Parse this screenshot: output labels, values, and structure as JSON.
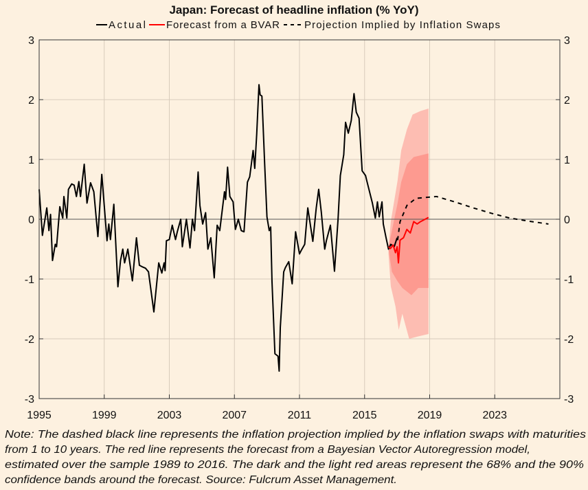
{
  "colors": {
    "background": "#fdf1e0",
    "actual": "#000000",
    "forecast": "#ff0000",
    "band68": "#fd9a90",
    "band90": "#fdbdb2",
    "grid": "#d8cbbb"
  },
  "chart_data": {
    "type": "line",
    "title": "Japan: Forecast of headline inflation (% YoY)",
    "xlim": [
      1995,
      2027
    ],
    "ylim": [
      -3,
      3
    ],
    "xticks": [
      1995,
      1999,
      2003,
      2007,
      2011,
      2015,
      2019,
      2023
    ],
    "yticks": [
      -3,
      -2,
      -1,
      0,
      1,
      2,
      3
    ],
    "grid": true,
    "legend_placement": "top",
    "legend": [
      "Actual",
      "Forecast from a BVAR",
      "Projection Implied by Inflation Swaps"
    ],
    "series": [
      {
        "name": "Actual",
        "style": "solid",
        "color": "#000000",
        "points": [
          [
            1995.0,
            0.5
          ],
          [
            1995.2,
            -0.27
          ],
          [
            1995.47,
            0.19
          ],
          [
            1995.6,
            -0.19
          ],
          [
            1995.7,
            0.08
          ],
          [
            1995.82,
            -0.69
          ],
          [
            1995.99,
            -0.42
          ],
          [
            1996.07,
            -0.46
          ],
          [
            1996.27,
            0.21
          ],
          [
            1996.45,
            0.02
          ],
          [
            1996.52,
            0.38
          ],
          [
            1996.7,
            0.02
          ],
          [
            1996.8,
            0.5
          ],
          [
            1997.0,
            0.59
          ],
          [
            1997.15,
            0.57
          ],
          [
            1997.29,
            0.38
          ],
          [
            1997.44,
            0.63
          ],
          [
            1997.54,
            0.38
          ],
          [
            1997.77,
            0.92
          ],
          [
            1997.94,
            0.27
          ],
          [
            1998.16,
            0.61
          ],
          [
            1998.36,
            0.46
          ],
          [
            1998.61,
            -0.29
          ],
          [
            1998.85,
            0.75
          ],
          [
            1999.17,
            -0.36
          ],
          [
            1999.28,
            -0.08
          ],
          [
            1999.38,
            -0.34
          ],
          [
            1999.59,
            0.25
          ],
          [
            1999.84,
            -1.13
          ],
          [
            2000.0,
            -0.69
          ],
          [
            2000.14,
            -0.5
          ],
          [
            2000.25,
            -0.73
          ],
          [
            2000.45,
            -0.5
          ],
          [
            2000.73,
            -1.03
          ],
          [
            2000.98,
            -0.31
          ],
          [
            2001.16,
            -0.77
          ],
          [
            2001.37,
            -0.8
          ],
          [
            2001.54,
            -0.82
          ],
          [
            2001.72,
            -0.88
          ],
          [
            2002.05,
            -1.55
          ],
          [
            2002.35,
            -0.73
          ],
          [
            2002.54,
            -0.9
          ],
          [
            2002.68,
            -0.73
          ],
          [
            2002.74,
            -0.86
          ],
          [
            2002.82,
            -0.36
          ],
          [
            2003.0,
            -0.34
          ],
          [
            2003.18,
            -0.1
          ],
          [
            2003.38,
            -0.34
          ],
          [
            2003.49,
            -0.21
          ],
          [
            2003.7,
            0.0
          ],
          [
            2003.8,
            -0.46
          ],
          [
            2004.05,
            0.0
          ],
          [
            2004.27,
            -0.48
          ],
          [
            2004.42,
            0.0
          ],
          [
            2004.55,
            -0.19
          ],
          [
            2004.77,
            0.79
          ],
          [
            2004.88,
            0.23
          ],
          [
            2005.05,
            -0.08
          ],
          [
            2005.23,
            0.11
          ],
          [
            2005.37,
            -0.5
          ],
          [
            2005.55,
            -0.31
          ],
          [
            2005.76,
            -0.98
          ],
          [
            2005.94,
            -0.1
          ],
          [
            2006.1,
            -0.19
          ],
          [
            2006.39,
            0.46
          ],
          [
            2006.46,
            0.33
          ],
          [
            2006.58,
            0.87
          ],
          [
            2006.72,
            0.38
          ],
          [
            2006.92,
            0.29
          ],
          [
            2007.06,
            -0.17
          ],
          [
            2007.24,
            0.0
          ],
          [
            2007.42,
            -0.19
          ],
          [
            2007.59,
            -0.21
          ],
          [
            2007.8,
            0.62
          ],
          [
            2007.94,
            0.71
          ],
          [
            2008.15,
            1.15
          ],
          [
            2008.25,
            0.85
          ],
          [
            2008.37,
            1.42
          ],
          [
            2008.51,
            2.25
          ],
          [
            2008.58,
            2.08
          ],
          [
            2008.69,
            2.06
          ],
          [
            2008.86,
            0.92
          ],
          [
            2009.0,
            0.04
          ],
          [
            2009.14,
            -0.19
          ],
          [
            2009.23,
            -0.13
          ],
          [
            2009.31,
            -1.04
          ],
          [
            2009.49,
            -2.25
          ],
          [
            2009.68,
            -2.29
          ],
          [
            2009.75,
            -2.54
          ],
          [
            2009.82,
            -1.81
          ],
          [
            2010.03,
            -0.88
          ],
          [
            2010.13,
            -0.81
          ],
          [
            2010.34,
            -0.71
          ],
          [
            2010.55,
            -1.08
          ],
          [
            2010.76,
            -0.21
          ],
          [
            2011.0,
            -0.58
          ],
          [
            2011.11,
            -0.52
          ],
          [
            2011.32,
            -0.42
          ],
          [
            2011.51,
            0.19
          ],
          [
            2011.82,
            -0.37
          ],
          [
            2012.03,
            0.19
          ],
          [
            2012.18,
            0.5
          ],
          [
            2012.34,
            0.12
          ],
          [
            2012.55,
            -0.5
          ],
          [
            2012.66,
            -0.35
          ],
          [
            2012.9,
            -0.1
          ],
          [
            2013.15,
            -0.87
          ],
          [
            2013.37,
            0.0
          ],
          [
            2013.51,
            0.73
          ],
          [
            2013.72,
            1.08
          ],
          [
            2013.83,
            1.62
          ],
          [
            2014.0,
            1.44
          ],
          [
            2014.18,
            1.65
          ],
          [
            2014.35,
            2.1
          ],
          [
            2014.49,
            1.79
          ],
          [
            2014.66,
            1.69
          ],
          [
            2014.85,
            0.81
          ],
          [
            2015.06,
            0.73
          ],
          [
            2015.13,
            0.65
          ],
          [
            2015.48,
            0.27
          ],
          [
            2015.66,
            0.02
          ],
          [
            2015.79,
            0.29
          ],
          [
            2015.9,
            0.04
          ],
          [
            2016.07,
            0.29
          ],
          [
            2016.15,
            -0.08
          ],
          [
            2016.32,
            -0.31
          ],
          [
            2016.47,
            -0.5
          ],
          [
            2016.61,
            -0.42
          ],
          [
            2016.82,
            -0.46
          ],
          [
            2017.0,
            -0.31
          ]
        ]
      },
      {
        "name": "Forecast from a BVAR",
        "style": "solid",
        "color": "#ff0000",
        "points": [
          [
            2016.47,
            -0.46
          ],
          [
            2016.59,
            -0.49
          ],
          [
            2016.75,
            -0.43
          ],
          [
            2016.9,
            -0.56
          ],
          [
            2017.0,
            -0.46
          ],
          [
            2017.08,
            -0.73
          ],
          [
            2017.18,
            -0.35
          ],
          [
            2017.39,
            -0.31
          ],
          [
            2017.6,
            -0.17
          ],
          [
            2017.81,
            -0.23
          ],
          [
            2018.02,
            -0.04
          ],
          [
            2018.23,
            -0.08
          ],
          [
            2018.44,
            -0.04
          ],
          [
            2018.93,
            0.03
          ]
        ]
      },
      {
        "name": "Projection Implied by Inflation Swaps",
        "style": "dashed",
        "color": "#000000",
        "points": [
          [
            2017.03,
            -0.35
          ],
          [
            2017.18,
            -0.04
          ],
          [
            2017.6,
            0.23
          ],
          [
            2018.16,
            0.35
          ],
          [
            2019.0,
            0.37
          ],
          [
            2019.42,
            0.38
          ],
          [
            2020.54,
            0.29
          ],
          [
            2021.67,
            0.19
          ],
          [
            2022.79,
            0.1
          ],
          [
            2023.91,
            0.02
          ],
          [
            2025.04,
            -0.03
          ],
          [
            2026.3,
            -0.08
          ]
        ]
      }
    ],
    "bands": [
      {
        "level": "90%",
        "color": "#fdbdb2",
        "upper": [
          [
            2016.47,
            -0.5
          ],
          [
            2016.61,
            -0.04
          ],
          [
            2016.75,
            0.19
          ],
          [
            2017.03,
            0.65
          ],
          [
            2017.25,
            1.15
          ],
          [
            2017.6,
            1.5
          ],
          [
            2017.95,
            1.75
          ],
          [
            2018.44,
            1.81
          ],
          [
            2018.93,
            1.85
          ]
        ],
        "lower": [
          [
            2016.47,
            -0.58
          ],
          [
            2016.61,
            -1.12
          ],
          [
            2016.9,
            -1.46
          ],
          [
            2017.1,
            -1.85
          ],
          [
            2017.32,
            -1.58
          ],
          [
            2017.74,
            -2.0
          ],
          [
            2018.3,
            -1.96
          ],
          [
            2018.93,
            -1.92
          ]
        ]
      },
      {
        "level": "68%",
        "color": "#fd9a90",
        "upper": [
          [
            2016.47,
            -0.46
          ],
          [
            2016.68,
            -0.19
          ],
          [
            2017.03,
            0.27
          ],
          [
            2017.25,
            0.62
          ],
          [
            2017.6,
            0.92
          ],
          [
            2018.02,
            1.04
          ],
          [
            2018.93,
            1.1
          ]
        ],
        "lower": [
          [
            2016.47,
            -0.5
          ],
          [
            2016.68,
            -0.88
          ],
          [
            2017.03,
            -1.04
          ],
          [
            2017.32,
            -1.15
          ],
          [
            2017.88,
            -1.27
          ],
          [
            2018.3,
            -1.15
          ],
          [
            2018.93,
            -1.15
          ]
        ]
      }
    ]
  },
  "note": {
    "lines": [
      "Note: The dashed black line represents the inflation projection implied by the inflation swaps with maturities",
      "from 1 to 10 years. The red line represents the forecast from a Bayesian Vector Autoregression model,",
      "estimated over the sample 1989 to 2016. The dark and the light red areas represent the 68% and the 90%",
      "confidence bands around the forecast. Source: Fulcrum Asset Management."
    ]
  }
}
